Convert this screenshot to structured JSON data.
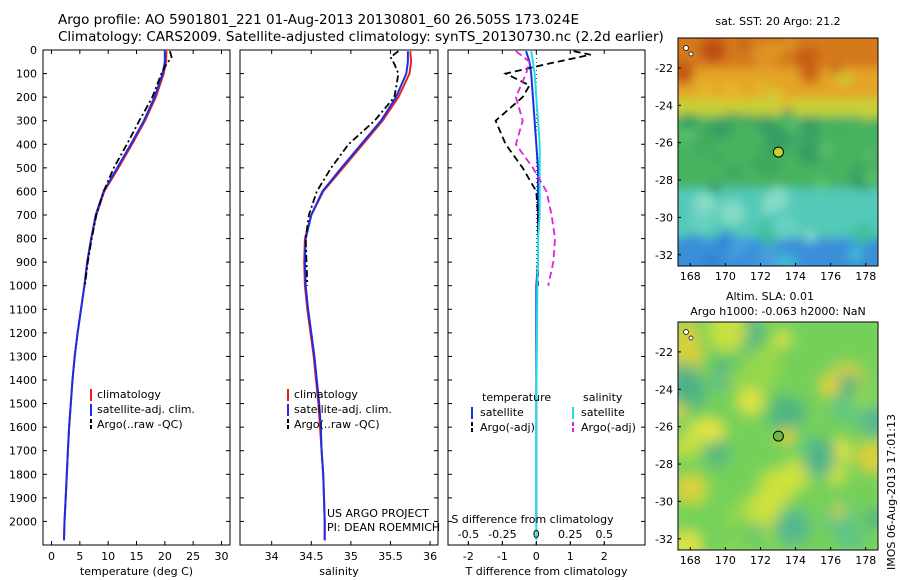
{
  "header": {
    "line1": "Argo profile: AO 5901801_221 01-Aug-2013 20130801_60 26.505S 173.024E",
    "line2": "Climatology: CARS2009. Satellite-adjusted climatology: synTS_20130730.nc (2.2d earlier)"
  },
  "colors": {
    "climatology": "#e8201e",
    "satellite": "#1a2ee6",
    "argo": "#000000",
    "cyan": "#22dde6",
    "magenta": "#e020e0"
  },
  "chart_data": [
    {
      "type": "line",
      "id": "temperature",
      "xlabel": "temperature (deg C)",
      "ylabel": "",
      "xlim": [
        -1.5,
        31.5
      ],
      "ylim": [
        2100,
        0
      ],
      "xticks": [
        0,
        5,
        10,
        15,
        20,
        25,
        30
      ],
      "yticks": [
        0,
        100,
        200,
        300,
        400,
        500,
        600,
        700,
        800,
        900,
        1000,
        1100,
        1200,
        1300,
        1400,
        1500,
        1600,
        1700,
        1800,
        1900,
        2000
      ],
      "legend": [
        "climatology",
        "satellite-adj. clim.",
        "Argo(..raw -QC)"
      ],
      "series": [
        {
          "name": "climatology",
          "style": "solid",
          "color": "#e8201e",
          "points": [
            [
              20.3,
              5
            ],
            [
              20.2,
              50
            ],
            [
              19.8,
              100
            ],
            [
              18.4,
              200
            ],
            [
              16.5,
              300
            ],
            [
              14.2,
              400
            ],
            [
              11.8,
              500
            ],
            [
              9.3,
              600
            ],
            [
              7.9,
              700
            ],
            [
              7.0,
              800
            ],
            [
              6.3,
              900
            ],
            [
              5.8,
              1000
            ],
            [
              5.2,
              1100
            ],
            [
              4.6,
              1200
            ],
            [
              4.1,
              1300
            ],
            [
              3.7,
              1400
            ],
            [
              3.4,
              1500
            ],
            [
              3.1,
              1600
            ],
            [
              2.9,
              1700
            ],
            [
              2.7,
              1800
            ],
            [
              2.5,
              1900
            ],
            [
              2.3,
              2000
            ],
            [
              2.2,
              2080
            ]
          ]
        },
        {
          "name": "satellite-adj. clim.",
          "style": "solid",
          "color": "#1a2ee6",
          "points": [
            [
              20.0,
              5
            ],
            [
              20.0,
              50
            ],
            [
              19.6,
              100
            ],
            [
              18.2,
              200
            ],
            [
              16.3,
              300
            ],
            [
              14.0,
              400
            ],
            [
              11.6,
              500
            ],
            [
              9.2,
              600
            ],
            [
              7.8,
              700
            ],
            [
              7.0,
              800
            ],
            [
              6.3,
              900
            ],
            [
              5.8,
              1000
            ],
            [
              5.2,
              1100
            ],
            [
              4.6,
              1200
            ],
            [
              4.1,
              1300
            ],
            [
              3.7,
              1400
            ],
            [
              3.4,
              1500
            ],
            [
              3.1,
              1600
            ],
            [
              2.9,
              1700
            ],
            [
              2.7,
              1800
            ],
            [
              2.5,
              1900
            ],
            [
              2.3,
              2000
            ],
            [
              2.2,
              2080
            ]
          ]
        },
        {
          "name": "Argo(..raw -QC)",
          "style": "dashdot",
          "color": "#000000",
          "points": [
            [
              20.9,
              5
            ],
            [
              21.2,
              30
            ],
            [
              20.3,
              60
            ],
            [
              19.4,
              100
            ],
            [
              17.8,
              200
            ],
            [
              15.5,
              300
            ],
            [
              13.3,
              400
            ],
            [
              11.0,
              500
            ],
            [
              9.2,
              600
            ],
            [
              7.9,
              700
            ],
            [
              7.1,
              800
            ],
            [
              6.4,
              900
            ],
            [
              5.9,
              1000
            ]
          ]
        }
      ]
    },
    {
      "type": "line",
      "id": "salinity",
      "xlabel": "salinity",
      "ylabel": "",
      "xlim": [
        33.6,
        36.1
      ],
      "ylim": [
        2100,
        0
      ],
      "xticks": [
        34,
        34.5,
        35,
        35.5,
        36
      ],
      "legend": [
        "climatology",
        "satellite-adj. clim.",
        "Argo(..raw -QC)"
      ],
      "annotation": [
        "US ARGO PROJECT",
        "PI: DEAN ROEMMICH"
      ],
      "series": [
        {
          "name": "climatology",
          "style": "solid",
          "color": "#e8201e",
          "points": [
            [
              35.75,
              5
            ],
            [
              35.76,
              50
            ],
            [
              35.74,
              100
            ],
            [
              35.6,
              200
            ],
            [
              35.4,
              300
            ],
            [
              35.15,
              400
            ],
            [
              34.9,
              500
            ],
            [
              34.65,
              600
            ],
            [
              34.5,
              700
            ],
            [
              34.42,
              800
            ],
            [
              34.41,
              900
            ],
            [
              34.42,
              1000
            ],
            [
              34.45,
              1100
            ],
            [
              34.49,
              1200
            ],
            [
              34.53,
              1300
            ],
            [
              34.56,
              1400
            ],
            [
              34.59,
              1500
            ],
            [
              34.61,
              1600
            ],
            [
              34.63,
              1700
            ],
            [
              34.65,
              1800
            ],
            [
              34.66,
              1900
            ],
            [
              34.67,
              2000
            ],
            [
              34.67,
              2080
            ]
          ]
        },
        {
          "name": "satellite-adj. clim.",
          "style": "solid",
          "color": "#1a2ee6",
          "points": [
            [
              35.72,
              5
            ],
            [
              35.72,
              50
            ],
            [
              35.7,
              100
            ],
            [
              35.57,
              200
            ],
            [
              35.38,
              300
            ],
            [
              35.13,
              400
            ],
            [
              34.88,
              500
            ],
            [
              34.64,
              600
            ],
            [
              34.5,
              700
            ],
            [
              34.43,
              800
            ],
            [
              34.42,
              900
            ],
            [
              34.43,
              1000
            ],
            [
              34.46,
              1100
            ],
            [
              34.5,
              1200
            ],
            [
              34.54,
              1300
            ],
            [
              34.57,
              1400
            ],
            [
              34.6,
              1500
            ],
            [
              34.62,
              1600
            ],
            [
              34.63,
              1700
            ],
            [
              34.65,
              1800
            ],
            [
              34.66,
              1900
            ],
            [
              34.67,
              2000
            ],
            [
              34.67,
              2080
            ]
          ]
        },
        {
          "name": "Argo(..raw -QC)",
          "style": "dashdot",
          "color": "#000000",
          "points": [
            [
              35.6,
              5
            ],
            [
              35.5,
              30
            ],
            [
              35.55,
              60
            ],
            [
              35.6,
              100
            ],
            [
              35.55,
              200
            ],
            [
              35.3,
              300
            ],
            [
              34.97,
              400
            ],
            [
              34.75,
              500
            ],
            [
              34.57,
              600
            ],
            [
              34.47,
              700
            ],
            [
              34.43,
              800
            ],
            [
              34.44,
              900
            ],
            [
              34.45,
              1000
            ]
          ]
        }
      ]
    },
    {
      "type": "line",
      "id": "difference",
      "xlabel": "T difference from climatology",
      "xlabel2": "S difference from climatology",
      "xlim": [
        -2.6,
        3.2
      ],
      "ylim": [
        2100,
        0
      ],
      "xticks": [
        -2,
        -1,
        0,
        1,
        2
      ],
      "xticks_top_values": [
        -0.5,
        -0.25,
        0,
        0.25,
        0.5
      ],
      "xticks_top_labels": [
        "-0.5",
        "-0.25",
        "0",
        "0.25",
        "0.5"
      ],
      "legend_headers": [
        "temperature",
        "salinity"
      ],
      "legend": [
        "satellite",
        "Argo(-adj)",
        "satellite",
        "Argo(-adj)"
      ],
      "series": [
        {
          "name": "satellite",
          "group": "temperature",
          "style": "solid",
          "color": "#1a2ee6",
          "points": [
            [
              -0.3,
              5
            ],
            [
              -0.2,
              50
            ],
            [
              -0.15,
              100
            ],
            [
              -0.1,
              200
            ],
            [
              -0.05,
              300
            ],
            [
              0,
              400
            ],
            [
              0.05,
              500
            ],
            [
              0.05,
              600
            ],
            [
              0.05,
              700
            ],
            [
              0.05,
              800
            ],
            [
              0.05,
              900
            ],
            [
              0,
              1000
            ],
            [
              0,
              1200
            ],
            [
              0,
              1500
            ],
            [
              0,
              2000
            ]
          ]
        },
        {
          "name": "Argo(-adj)",
          "group": "temperature",
          "style": "dashed",
          "color": "#000000",
          "points": [
            [
              1.1,
              5
            ],
            [
              1.6,
              20
            ],
            [
              0.3,
              60
            ],
            [
              -0.9,
              100
            ],
            [
              -0.2,
              150
            ],
            [
              -0.4,
              200
            ],
            [
              -1.2,
              300
            ],
            [
              -0.9,
              400
            ],
            [
              -0.4,
              500
            ],
            [
              0,
              600
            ],
            [
              0.05,
              700
            ],
            [
              0.05,
              800
            ],
            [
              0.05,
              900
            ],
            [
              0.05,
              1000
            ]
          ]
        },
        {
          "name": "satellite",
          "group": "salinity",
          "style": "solid",
          "color": "#22dde6",
          "points": [
            [
              -0.15,
              5
            ],
            [
              -0.1,
              50
            ],
            [
              -0.05,
              100
            ],
            [
              0,
              200
            ],
            [
              0.05,
              300
            ],
            [
              0.1,
              400
            ],
            [
              0.1,
              500
            ],
            [
              0.1,
              600
            ],
            [
              0.1,
              700
            ],
            [
              0.05,
              800
            ],
            [
              0.05,
              900
            ],
            [
              0.03,
              1000
            ],
            [
              0.02,
              1200
            ],
            [
              0,
              1500
            ],
            [
              0,
              2000
            ],
            [
              0,
              2080
            ]
          ]
        },
        {
          "name": "Argo(-adj)",
          "group": "salinity",
          "style": "dashed",
          "color": "#e020e0",
          "points": [
            [
              -0.6,
              5
            ],
            [
              -0.2,
              50
            ],
            [
              -0.3,
              100
            ],
            [
              -0.6,
              200
            ],
            [
              -0.4,
              300
            ],
            [
              -0.6,
              400
            ],
            [
              -0.1,
              500
            ],
            [
              0.3,
              600
            ],
            [
              0.45,
              700
            ],
            [
              0.55,
              800
            ],
            [
              0.5,
              900
            ],
            [
              0.35,
              1000
            ]
          ]
        }
      ]
    },
    {
      "type": "heatmap",
      "id": "sst_map",
      "title": "sat. SST: 20 Argo: 21.2",
      "xlim": [
        167.3,
        178.7
      ],
      "ylim": [
        -32.6,
        -20.4
      ],
      "xticks": [
        168,
        170,
        172,
        174,
        176,
        178
      ],
      "yticks": [
        -22,
        -24,
        -26,
        -28,
        -30,
        -32
      ],
      "argo_position": [
        173.024,
        -26.505
      ]
    },
    {
      "type": "heatmap",
      "id": "sla_map",
      "title": "Altim. SLA: 0.01",
      "subtitle": "Argo h1000: -0.063 h2000: NaN",
      "xlim": [
        167.3,
        178.7
      ],
      "ylim": [
        -32.6,
        -20.4
      ],
      "xticks": [
        168,
        170,
        172,
        174,
        176,
        178
      ],
      "yticks": [
        -22,
        -24,
        -26,
        -28,
        -30,
        -32
      ],
      "argo_position": [
        173.024,
        -26.505
      ]
    }
  ],
  "footer": {
    "credit": "IMOS 06-Aug-2013 17:01:13"
  }
}
